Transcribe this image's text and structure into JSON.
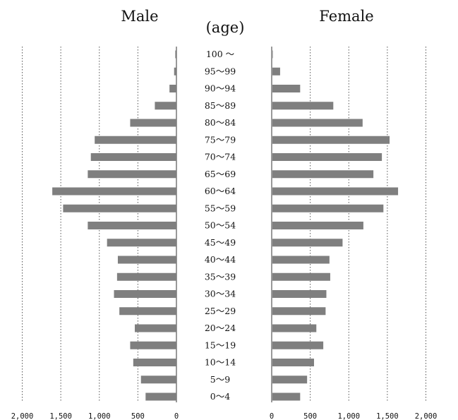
{
  "chart_data": {
    "type": "bar",
    "title": "",
    "center_label": "(age)",
    "categories": [
      "100 ～",
      "95～99",
      "90～94",
      "85～89",
      "80～84",
      "75～79",
      "70～74",
      "65～69",
      "60～64",
      "55～59",
      "50～54",
      "45～49",
      "40～44",
      "35～39",
      "30～34",
      "25～29",
      "20～24",
      "15～19",
      "10～14",
      "5～9",
      "0～4"
    ],
    "series": [
      {
        "name": "Male",
        "values": [
          15,
          30,
          90,
          280,
          600,
          1060,
          1110,
          1150,
          1610,
          1470,
          1150,
          900,
          760,
          770,
          810,
          740,
          540,
          600,
          560,
          460,
          400
        ]
      },
      {
        "name": "Female",
        "values": [
          5,
          100,
          360,
          790,
          1170,
          1520,
          1420,
          1310,
          1630,
          1440,
          1180,
          910,
          740,
          750,
          700,
          690,
          570,
          660,
          540,
          450,
          360
        ]
      }
    ],
    "xlim": [
      0,
      2000
    ],
    "x_ticks": [
      0,
      500,
      1000,
      1500,
      2000
    ],
    "male_tick_labels": [
      "2,000",
      "1,500",
      "1,000",
      "500",
      "0"
    ],
    "female_tick_labels": [
      "0",
      "500",
      "1,000",
      "1,500",
      "2,000"
    ],
    "grid": "vertical dotted lines",
    "bar_color": "#7f7f7f",
    "axis_color": "#333333",
    "grid_color": "#555555"
  }
}
